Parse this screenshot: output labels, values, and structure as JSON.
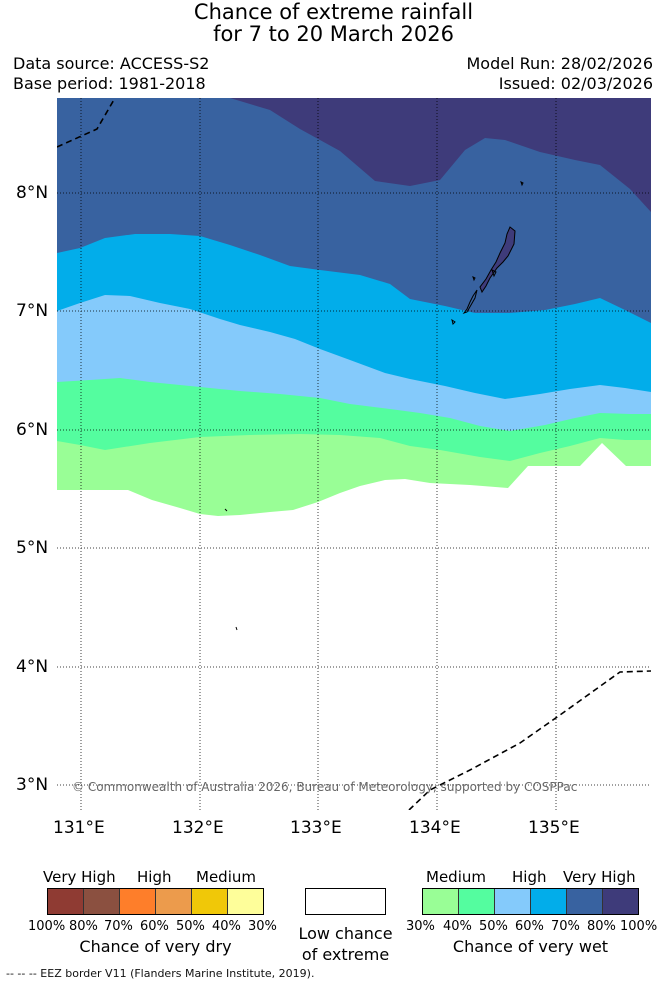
{
  "title": {
    "line1": "Chance of extreme rainfall",
    "line2": "for 7 to 20 March 2026"
  },
  "meta": {
    "data_source": "Data source: ACCESS-S2",
    "base_period": "Base period: 1981-2018",
    "model_run": "Model Run: 28/02/2026",
    "issued": "Issued: 02/03/2026"
  },
  "map": {
    "lat_labels": [
      "8°N",
      "7°N",
      "6°N",
      "5°N",
      "4°N",
      "3°N"
    ],
    "lon_labels": [
      "131°E",
      "132°E",
      "133°E",
      "134°E",
      "135°E"
    ],
    "copyright": "© Commonwealth of Australia 2026, Bureau of Meteorology, supported by COSPPac"
  },
  "colors": {
    "wet_30": "#99fe96",
    "wet_40": "#54fd9f",
    "wet_50": "#84cafb",
    "wet_60": "#02adea",
    "wet_70": "#3862a0",
    "wet_80": "#3e3b7a",
    "dry_100": "#8f3b33",
    "dry_80": "#8b5040",
    "dry_70": "#fe7e2a",
    "dry_60": "#ec9b4c",
    "dry_50": "#f0c808",
    "dry_40": "#fefe9a"
  },
  "legend": {
    "dry": {
      "cat_very_high": "Very High",
      "cat_high": "High",
      "cat_medium": "Medium",
      "ticks": [
        "100%",
        "80%",
        "70%",
        "60%",
        "50%",
        "40%",
        "30%"
      ],
      "caption": "Chance of very dry"
    },
    "low": {
      "line1": "Low chance",
      "line2": "of extreme"
    },
    "wet": {
      "cat_medium": "Medium",
      "cat_high": "High",
      "cat_very_high": "Very High",
      "ticks": [
        "30%",
        "40%",
        "50%",
        "60%",
        "70%",
        "80%",
        "100%"
      ],
      "caption": "Chance of very wet"
    }
  },
  "footer": "--  --  -- EEZ border V11 (Flanders Marine Institute, 2019)."
}
